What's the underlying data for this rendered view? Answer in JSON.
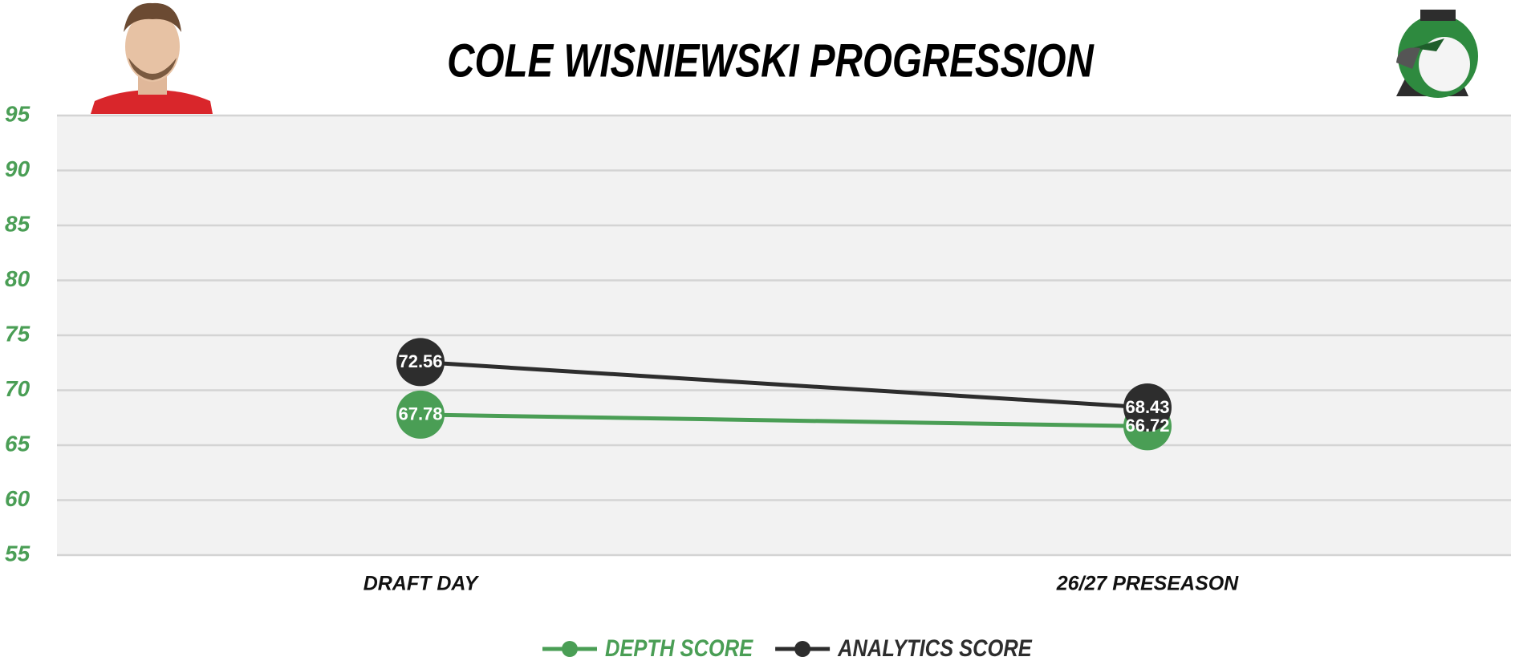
{
  "chart_data": {
    "type": "line",
    "title": "COLE WISNIEWSKI PROGRESSION",
    "categories": [
      "DRAFT DAY",
      "26/27 PRESEASON"
    ],
    "series": [
      {
        "name": "DEPTH SCORE",
        "color": "#4a9e55",
        "values": [
          67.78,
          66.72
        ]
      },
      {
        "name": "ANALYTICS SCORE",
        "color": "#2d2d2d",
        "values": [
          72.56,
          68.43
        ]
      }
    ],
    "ylim": [
      55,
      95
    ],
    "yticks": [
      55,
      60,
      65,
      70,
      75,
      80,
      85,
      90,
      95
    ],
    "grid": true,
    "legend": "bottom",
    "tick_color": "#4a9e55"
  }
}
